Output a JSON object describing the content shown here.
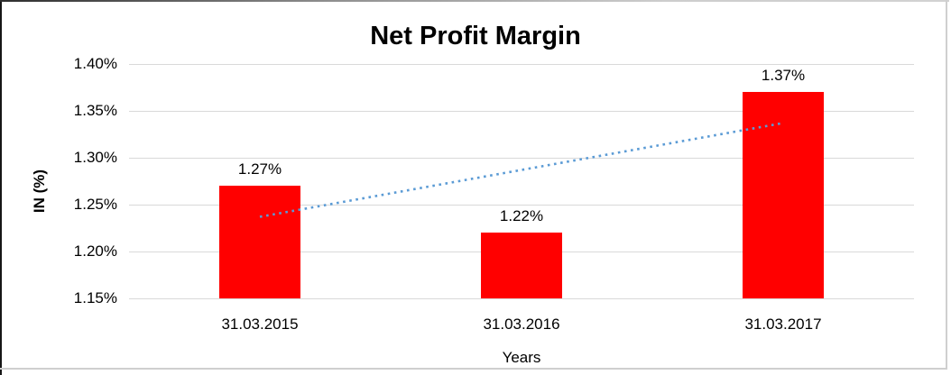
{
  "chart_data": {
    "type": "bar",
    "title": "Net Profit Margin",
    "xlabel": "Years",
    "ylabel": "IN (%)",
    "categories": [
      "31.03.2015",
      "31.03.2016",
      "31.03.2017"
    ],
    "values": [
      1.27,
      1.22,
      1.37
    ],
    "data_labels": [
      "1.27%",
      "1.22%",
      "1.37%"
    ],
    "ylim": [
      1.15,
      1.4
    ],
    "yticks": [
      {
        "label": "1.40%",
        "value": 1.4
      },
      {
        "label": "1.35%",
        "value": 1.35
      },
      {
        "label": "1.30%",
        "value": 1.3
      },
      {
        "label": "1.25%",
        "value": 1.25
      },
      {
        "label": "1.20%",
        "value": 1.2
      },
      {
        "label": "1.15%",
        "value": 1.15
      }
    ],
    "grid": true,
    "legend": false,
    "bar_color": "#FF0000",
    "gridline_color": "#D9D9D9",
    "text_color": "#000000",
    "trendline": {
      "type": "linear",
      "style": "dotted",
      "color": "#5B9BD5",
      "start_value": 1.237,
      "end_value": 1.337
    }
  }
}
